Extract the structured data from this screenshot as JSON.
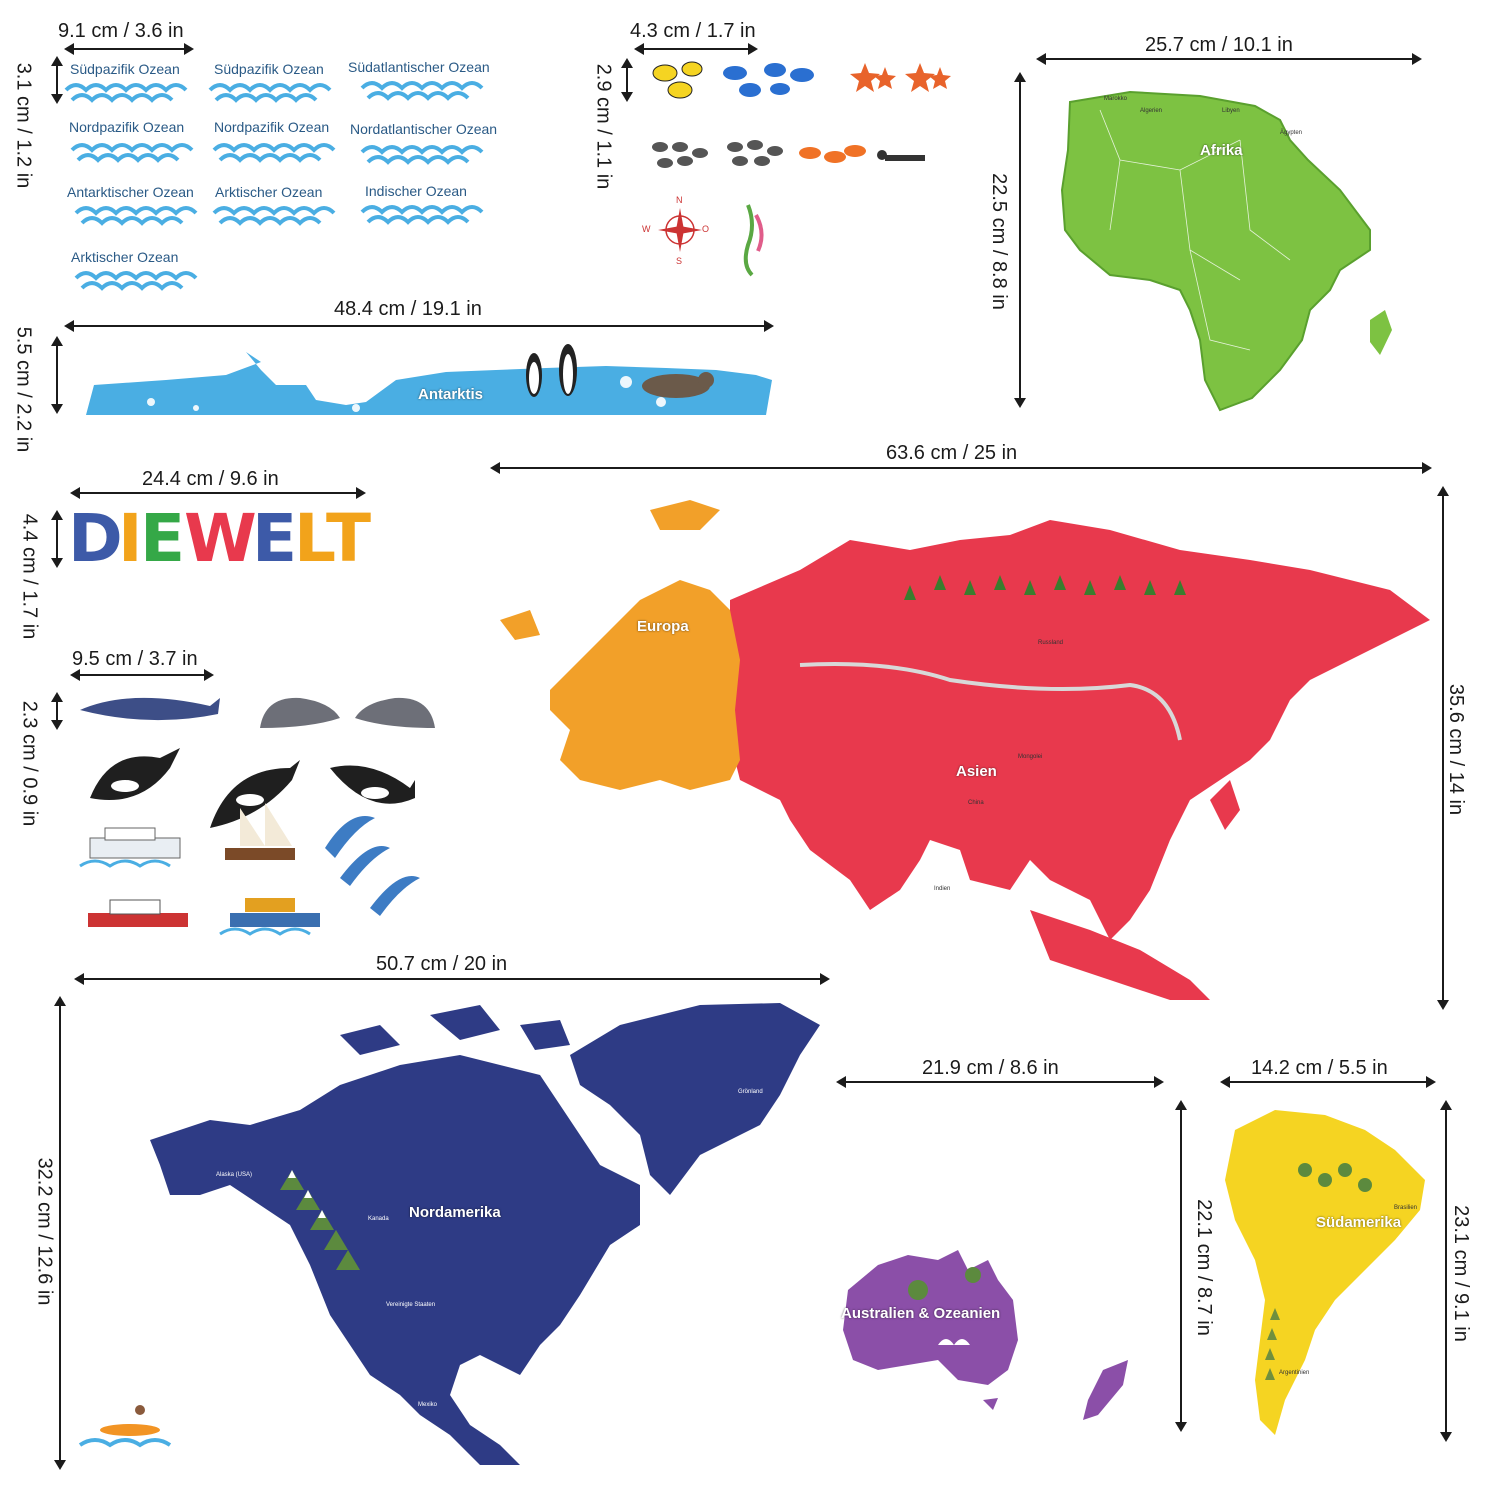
{
  "dimensions": {
    "oceans": {
      "width": "9.1 cm / 3.6 in",
      "height": "3.1 cm / 1.2 in"
    },
    "fish": {
      "width": "4.3 cm / 1.7 in",
      "height": "2.9 cm / 1.1 in"
    },
    "africa": {
      "width": "25.7 cm / 10.1 in",
      "height": "22.5 cm / 8.8 in"
    },
    "antarctica": {
      "width": "48.4 cm / 19.1 in",
      "height": "5.5 cm / 2.2 in"
    },
    "eurasia": {
      "width": "63.6 cm / 25 in",
      "height": "35.6 cm / 14 in"
    },
    "title": {
      "width": "24.4 cm / 9.6 in",
      "height": "4.4 cm / 1.7 in"
    },
    "whales": {
      "width": "9.5 cm / 3.7 in",
      "height": "2.3 cm / 0.9 in"
    },
    "north_america": {
      "width": "50.7 cm / 20 in",
      "height": "32.2 cm / 12.6 in"
    },
    "australia": {
      "width": "21.9 cm / 8.6 in",
      "height": "22.1 cm / 8.7 in"
    },
    "south_america": {
      "width": "14.2 cm / 5.5 in",
      "height": "23.1 cm / 9.1 in"
    }
  },
  "oceans": [
    "Südpazifik Ozean",
    "Südpazifik Ozean",
    "Südatlantischer Ozean",
    "Nordpazifik Ozean",
    "Nordpazifik Ozean",
    "Nordatlantischer Ozean",
    "Antarktischer Ozean",
    "Arktischer Ozean",
    "Indischer Ozean",
    "Arktischer Ozean"
  ],
  "title": {
    "letters": [
      "D",
      "I",
      "E",
      " ",
      "W",
      "E",
      "L",
      "T"
    ],
    "colors": [
      "#3d5aa8",
      "#f2a31b",
      "#35a847",
      "",
      "#e8394d",
      "#3d5aa8",
      "#f2a31b",
      "#f2a31b"
    ]
  },
  "continents": {
    "antarctica": "Antarktis",
    "africa": "Afrika",
    "europe": "Europa",
    "asia": "Asien",
    "north_america": "Nordamerika",
    "australia": "Australien & Ozeanien",
    "south_america": "Südamerika"
  },
  "places": {
    "russia": "Russland",
    "mongolia": "Mongolei",
    "china": "China",
    "india": "Indien",
    "canada": "Kanada",
    "usa": "Vereinigte Staaten",
    "alaska": "Alaska (USA)",
    "greenland": "Grönland",
    "mexico": "Mexiko",
    "brazil": "Brasilien",
    "argentina": "Argentinien",
    "morocco": "Marokko",
    "algeria": "Algerien",
    "libya": "Libyen",
    "egypt": "Ägypten"
  },
  "colors": {
    "africa": "#7dc242",
    "eurasia": "#e8394d",
    "europe": "#f2a029",
    "north_america": "#2e3b85",
    "australia": "#8b4fa8",
    "south_america": "#f5d422",
    "antarctica": "#4aaee3",
    "wave": "#4aaee3"
  }
}
